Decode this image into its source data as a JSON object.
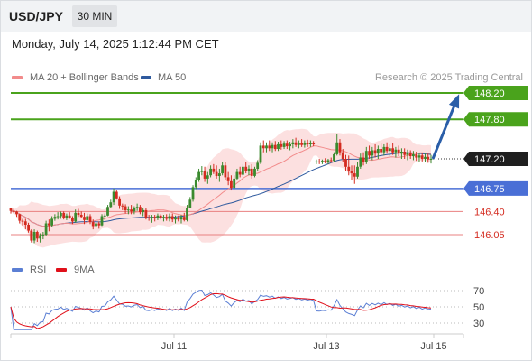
{
  "header": {
    "symbol": "USD/JPY",
    "timeframe": "30 MIN"
  },
  "timestamp": "Monday, July 14, 2025 1:12:44 PM CET",
  "legend": {
    "ma20": {
      "label": "MA 20 + Bollinger Bands",
      "color": "#f28b8b"
    },
    "ma50": {
      "label": "MA 50",
      "color": "#2f5a9e"
    },
    "credit": "Research © 2025 Trading Central"
  },
  "rsi_legend": {
    "rsi": {
      "label": "RSI",
      "color": "#5b7fd4"
    },
    "ma9": {
      "label": "9MA",
      "color": "#e0101a"
    }
  },
  "colors": {
    "up": "#3a8a2e",
    "down": "#d42b20",
    "resistance": "#4aa31c",
    "support_blue": "#4a6fd6",
    "support_red": "#e98080",
    "price_box": "#1f1f1f",
    "arrow": "#2a5ea8",
    "band": "#fbdada"
  },
  "chart_data": {
    "type": "candlestick",
    "x_ticks": [
      "Jul 11",
      "Jul 13",
      "Jul 15"
    ],
    "price_levels": [
      {
        "value": "148.20",
        "kind": "resistance"
      },
      {
        "value": "147.80",
        "kind": "resistance"
      },
      {
        "value": "147.20",
        "kind": "last-price"
      },
      {
        "value": "146.75",
        "kind": "support"
      },
      {
        "value": "146.40",
        "kind": "support"
      },
      {
        "value": "146.05",
        "kind": "support"
      }
    ],
    "price_axis_range": [
      145.8,
      148.3
    ],
    "expected_path": {
      "from": 147.2,
      "to": 148.2
    },
    "candles": [
      [
        146.45,
        146.45,
        146.37,
        146.41
      ],
      [
        146.41,
        146.45,
        146.37,
        146.4
      ],
      [
        146.4,
        146.41,
        146.32,
        146.36
      ],
      [
        146.36,
        146.37,
        146.22,
        146.26
      ],
      [
        146.26,
        146.29,
        146.19,
        146.25
      ],
      [
        146.25,
        146.29,
        146.13,
        146.2
      ],
      [
        146.2,
        146.23,
        146.08,
        146.11
      ],
      [
        146.11,
        146.13,
        145.93,
        145.96
      ],
      [
        145.96,
        146.13,
        145.92,
        146.09
      ],
      [
        146.09,
        146.11,
        145.94,
        145.99
      ],
      [
        145.99,
        146.07,
        145.93,
        146.04
      ],
      [
        146.04,
        146.09,
        145.98,
        146.05
      ],
      [
        146.05,
        146.26,
        146.03,
        146.22
      ],
      [
        146.22,
        146.28,
        146.1,
        146.19
      ],
      [
        146.19,
        146.33,
        146.17,
        146.29
      ],
      [
        146.29,
        146.36,
        146.26,
        146.32
      ],
      [
        146.32,
        146.39,
        146.28,
        146.33
      ],
      [
        146.33,
        146.4,
        146.29,
        146.38
      ],
      [
        146.38,
        146.4,
        146.28,
        146.31
      ],
      [
        146.31,
        146.37,
        146.27,
        146.34
      ],
      [
        146.34,
        146.39,
        146.29,
        146.3
      ],
      [
        146.3,
        146.33,
        146.21,
        146.25
      ],
      [
        146.25,
        146.43,
        146.23,
        146.38
      ],
      [
        146.38,
        146.44,
        146.32,
        146.35
      ],
      [
        146.35,
        146.4,
        146.3,
        146.32
      ],
      [
        146.32,
        146.38,
        146.21,
        146.27
      ],
      [
        146.27,
        146.37,
        146.26,
        146.33
      ],
      [
        146.33,
        146.36,
        146.21,
        146.24
      ],
      [
        146.24,
        146.28,
        146.13,
        146.18
      ],
      [
        146.18,
        146.27,
        146.15,
        146.22
      ],
      [
        146.22,
        146.25,
        146.14,
        146.19
      ],
      [
        146.19,
        146.36,
        146.18,
        146.33
      ],
      [
        146.33,
        146.37,
        146.27,
        146.34
      ],
      [
        146.34,
        146.5,
        146.33,
        146.47
      ],
      [
        146.47,
        146.58,
        146.46,
        146.54
      ],
      [
        146.54,
        146.75,
        146.5,
        146.7
      ],
      [
        146.7,
        146.72,
        146.58,
        146.6
      ],
      [
        146.6,
        146.63,
        146.44,
        146.49
      ],
      [
        146.49,
        146.52,
        146.42,
        146.48
      ],
      [
        146.48,
        146.51,
        146.37,
        146.42
      ],
      [
        146.42,
        146.48,
        146.36,
        146.43
      ],
      [
        146.43,
        146.5,
        146.36,
        146.4
      ],
      [
        146.4,
        146.48,
        146.36,
        146.45
      ],
      [
        146.45,
        146.52,
        146.41,
        146.47
      ],
      [
        146.47,
        146.5,
        146.36,
        146.39
      ],
      [
        146.39,
        146.45,
        146.33,
        146.42
      ],
      [
        146.42,
        146.45,
        146.28,
        146.31
      ],
      [
        146.31,
        146.35,
        146.26,
        146.3
      ],
      [
        146.3,
        146.35,
        146.23,
        146.32
      ],
      [
        146.32,
        146.35,
        146.25,
        146.3
      ],
      [
        146.3,
        146.37,
        146.27,
        146.34
      ],
      [
        146.34,
        146.36,
        146.28,
        146.3
      ],
      [
        146.3,
        146.35,
        146.25,
        146.32
      ],
      [
        146.32,
        146.36,
        146.26,
        146.29
      ],
      [
        146.29,
        146.37,
        146.25,
        146.33
      ],
      [
        146.33,
        146.37,
        146.24,
        146.28
      ],
      [
        146.28,
        146.34,
        146.22,
        146.31
      ],
      [
        146.31,
        146.34,
        146.25,
        146.28
      ],
      [
        146.28,
        146.35,
        146.22,
        146.32
      ],
      [
        146.32,
        146.38,
        146.25,
        146.27
      ],
      [
        146.27,
        146.5,
        146.25,
        146.46
      ],
      [
        146.46,
        146.62,
        146.45,
        146.58
      ],
      [
        146.58,
        146.8,
        146.55,
        146.77
      ],
      [
        146.77,
        146.92,
        146.74,
        146.88
      ],
      [
        146.88,
        147.05,
        146.85,
        147.0
      ],
      [
        147.0,
        147.09,
        146.95,
        147.02
      ],
      [
        147.02,
        147.08,
        146.85,
        146.9
      ],
      [
        146.9,
        147.0,
        146.82,
        146.95
      ],
      [
        146.95,
        147.1,
        146.92,
        147.05
      ],
      [
        147.05,
        147.12,
        146.97,
        147.0
      ],
      [
        147.0,
        147.1,
        146.9,
        146.94
      ],
      [
        146.94,
        147.05,
        146.85,
        146.98
      ],
      [
        146.98,
        147.15,
        146.95,
        147.1
      ],
      [
        147.1,
        147.15,
        146.88,
        146.92
      ],
      [
        146.92,
        147.0,
        146.8,
        146.86
      ],
      [
        146.86,
        146.95,
        146.72,
        146.76
      ],
      [
        146.76,
        146.95,
        146.74,
        146.9
      ],
      [
        146.9,
        147.05,
        146.88,
        147.0
      ],
      [
        147.0,
        147.08,
        146.92,
        146.96
      ],
      [
        146.96,
        147.12,
        146.93,
        147.08
      ],
      [
        147.08,
        147.15,
        146.98,
        147.02
      ],
      [
        147.02,
        147.1,
        146.95,
        147.05
      ],
      [
        147.05,
        147.12,
        146.9,
        146.94
      ],
      [
        146.94,
        147.08,
        146.92,
        147.05
      ],
      [
        147.05,
        147.18,
        147.02,
        147.14
      ],
      [
        147.14,
        147.45,
        147.12,
        147.4
      ],
      [
        147.4,
        147.48,
        147.3,
        147.36
      ],
      [
        147.36,
        147.45,
        147.3,
        147.4
      ],
      [
        147.4,
        147.48,
        147.32,
        147.36
      ],
      [
        147.36,
        147.45,
        147.3,
        147.41
      ],
      [
        147.41,
        147.47,
        147.32,
        147.35
      ],
      [
        147.35,
        147.46,
        147.32,
        147.42
      ],
      [
        147.42,
        147.48,
        147.34,
        147.38
      ],
      [
        147.38,
        147.47,
        147.35,
        147.43
      ],
      [
        147.43,
        147.48,
        147.35,
        147.39
      ],
      [
        147.39,
        147.46,
        147.33,
        147.42
      ],
      [
        147.42,
        147.5,
        147.36,
        147.45
      ],
      [
        147.45,
        147.52,
        147.38,
        147.41
      ],
      [
        147.41,
        147.48,
        147.36,
        147.44
      ],
      [
        147.44,
        147.5,
        147.38,
        147.41
      ],
      [
        147.41,
        147.48,
        147.37,
        147.44
      ],
      [
        147.44,
        147.49,
        147.38,
        147.42
      ],
      [
        147.42,
        147.48,
        147.38,
        147.44
      ],
      [
        147.44,
        147.47,
        147.39,
        147.42
      ],
      [
        147.15,
        147.19,
        147.12,
        147.16
      ],
      [
        147.16,
        147.2,
        147.12,
        147.15
      ],
      [
        147.15,
        147.19,
        147.12,
        147.17
      ],
      [
        147.17,
        147.21,
        147.13,
        147.16
      ],
      [
        147.16,
        147.2,
        147.12,
        147.18
      ],
      [
        147.18,
        147.22,
        147.14,
        147.17
      ],
      [
        147.17,
        147.3,
        147.15,
        147.27
      ],
      [
        147.27,
        147.58,
        147.25,
        147.45
      ],
      [
        147.45,
        147.5,
        147.25,
        147.3
      ],
      [
        147.3,
        147.35,
        147.15,
        147.2
      ],
      [
        147.2,
        147.26,
        147.02,
        147.08
      ],
      [
        147.08,
        147.25,
        146.95,
        147.02
      ],
      [
        147.02,
        147.1,
        146.88,
        146.98
      ],
      [
        146.98,
        147.1,
        146.82,
        146.93
      ],
      [
        146.93,
        147.15,
        146.9,
        147.08
      ],
      [
        147.08,
        147.28,
        147.05,
        147.22
      ],
      [
        147.22,
        147.3,
        147.1,
        147.15
      ],
      [
        147.15,
        147.38,
        147.12,
        147.32
      ],
      [
        147.32,
        147.4,
        147.2,
        147.25
      ],
      [
        147.25,
        147.38,
        147.18,
        147.33
      ],
      [
        147.33,
        147.42,
        147.22,
        147.28
      ],
      [
        147.28,
        147.4,
        147.2,
        147.35
      ],
      [
        147.35,
        147.44,
        147.26,
        147.3
      ],
      [
        147.3,
        147.42,
        147.25,
        147.38
      ],
      [
        147.38,
        147.45,
        147.28,
        147.32
      ],
      [
        147.32,
        147.42,
        147.24,
        147.36
      ],
      [
        147.36,
        147.44,
        147.26,
        147.3
      ],
      [
        147.3,
        147.38,
        147.22,
        147.34
      ],
      [
        147.34,
        147.4,
        147.24,
        147.28
      ],
      [
        147.28,
        147.36,
        147.2,
        147.31
      ],
      [
        147.31,
        147.36,
        147.2,
        147.26
      ],
      [
        147.26,
        147.34,
        147.18,
        147.29
      ],
      [
        147.29,
        147.33,
        147.2,
        147.24
      ],
      [
        147.24,
        147.32,
        147.18,
        147.27
      ],
      [
        147.27,
        147.31,
        147.17,
        147.22
      ],
      [
        147.22,
        147.29,
        147.15,
        147.25
      ],
      [
        147.25,
        147.29,
        147.16,
        147.2
      ],
      [
        147.2,
        147.28,
        147.15,
        147.23
      ],
      [
        147.23,
        147.28,
        147.14,
        147.19
      ],
      [
        147.19,
        147.26,
        147.13,
        147.2
      ]
    ]
  },
  "rsi_data": {
    "ticks": [
      "70",
      "50",
      "30"
    ],
    "range": [
      20,
      80
    ]
  }
}
